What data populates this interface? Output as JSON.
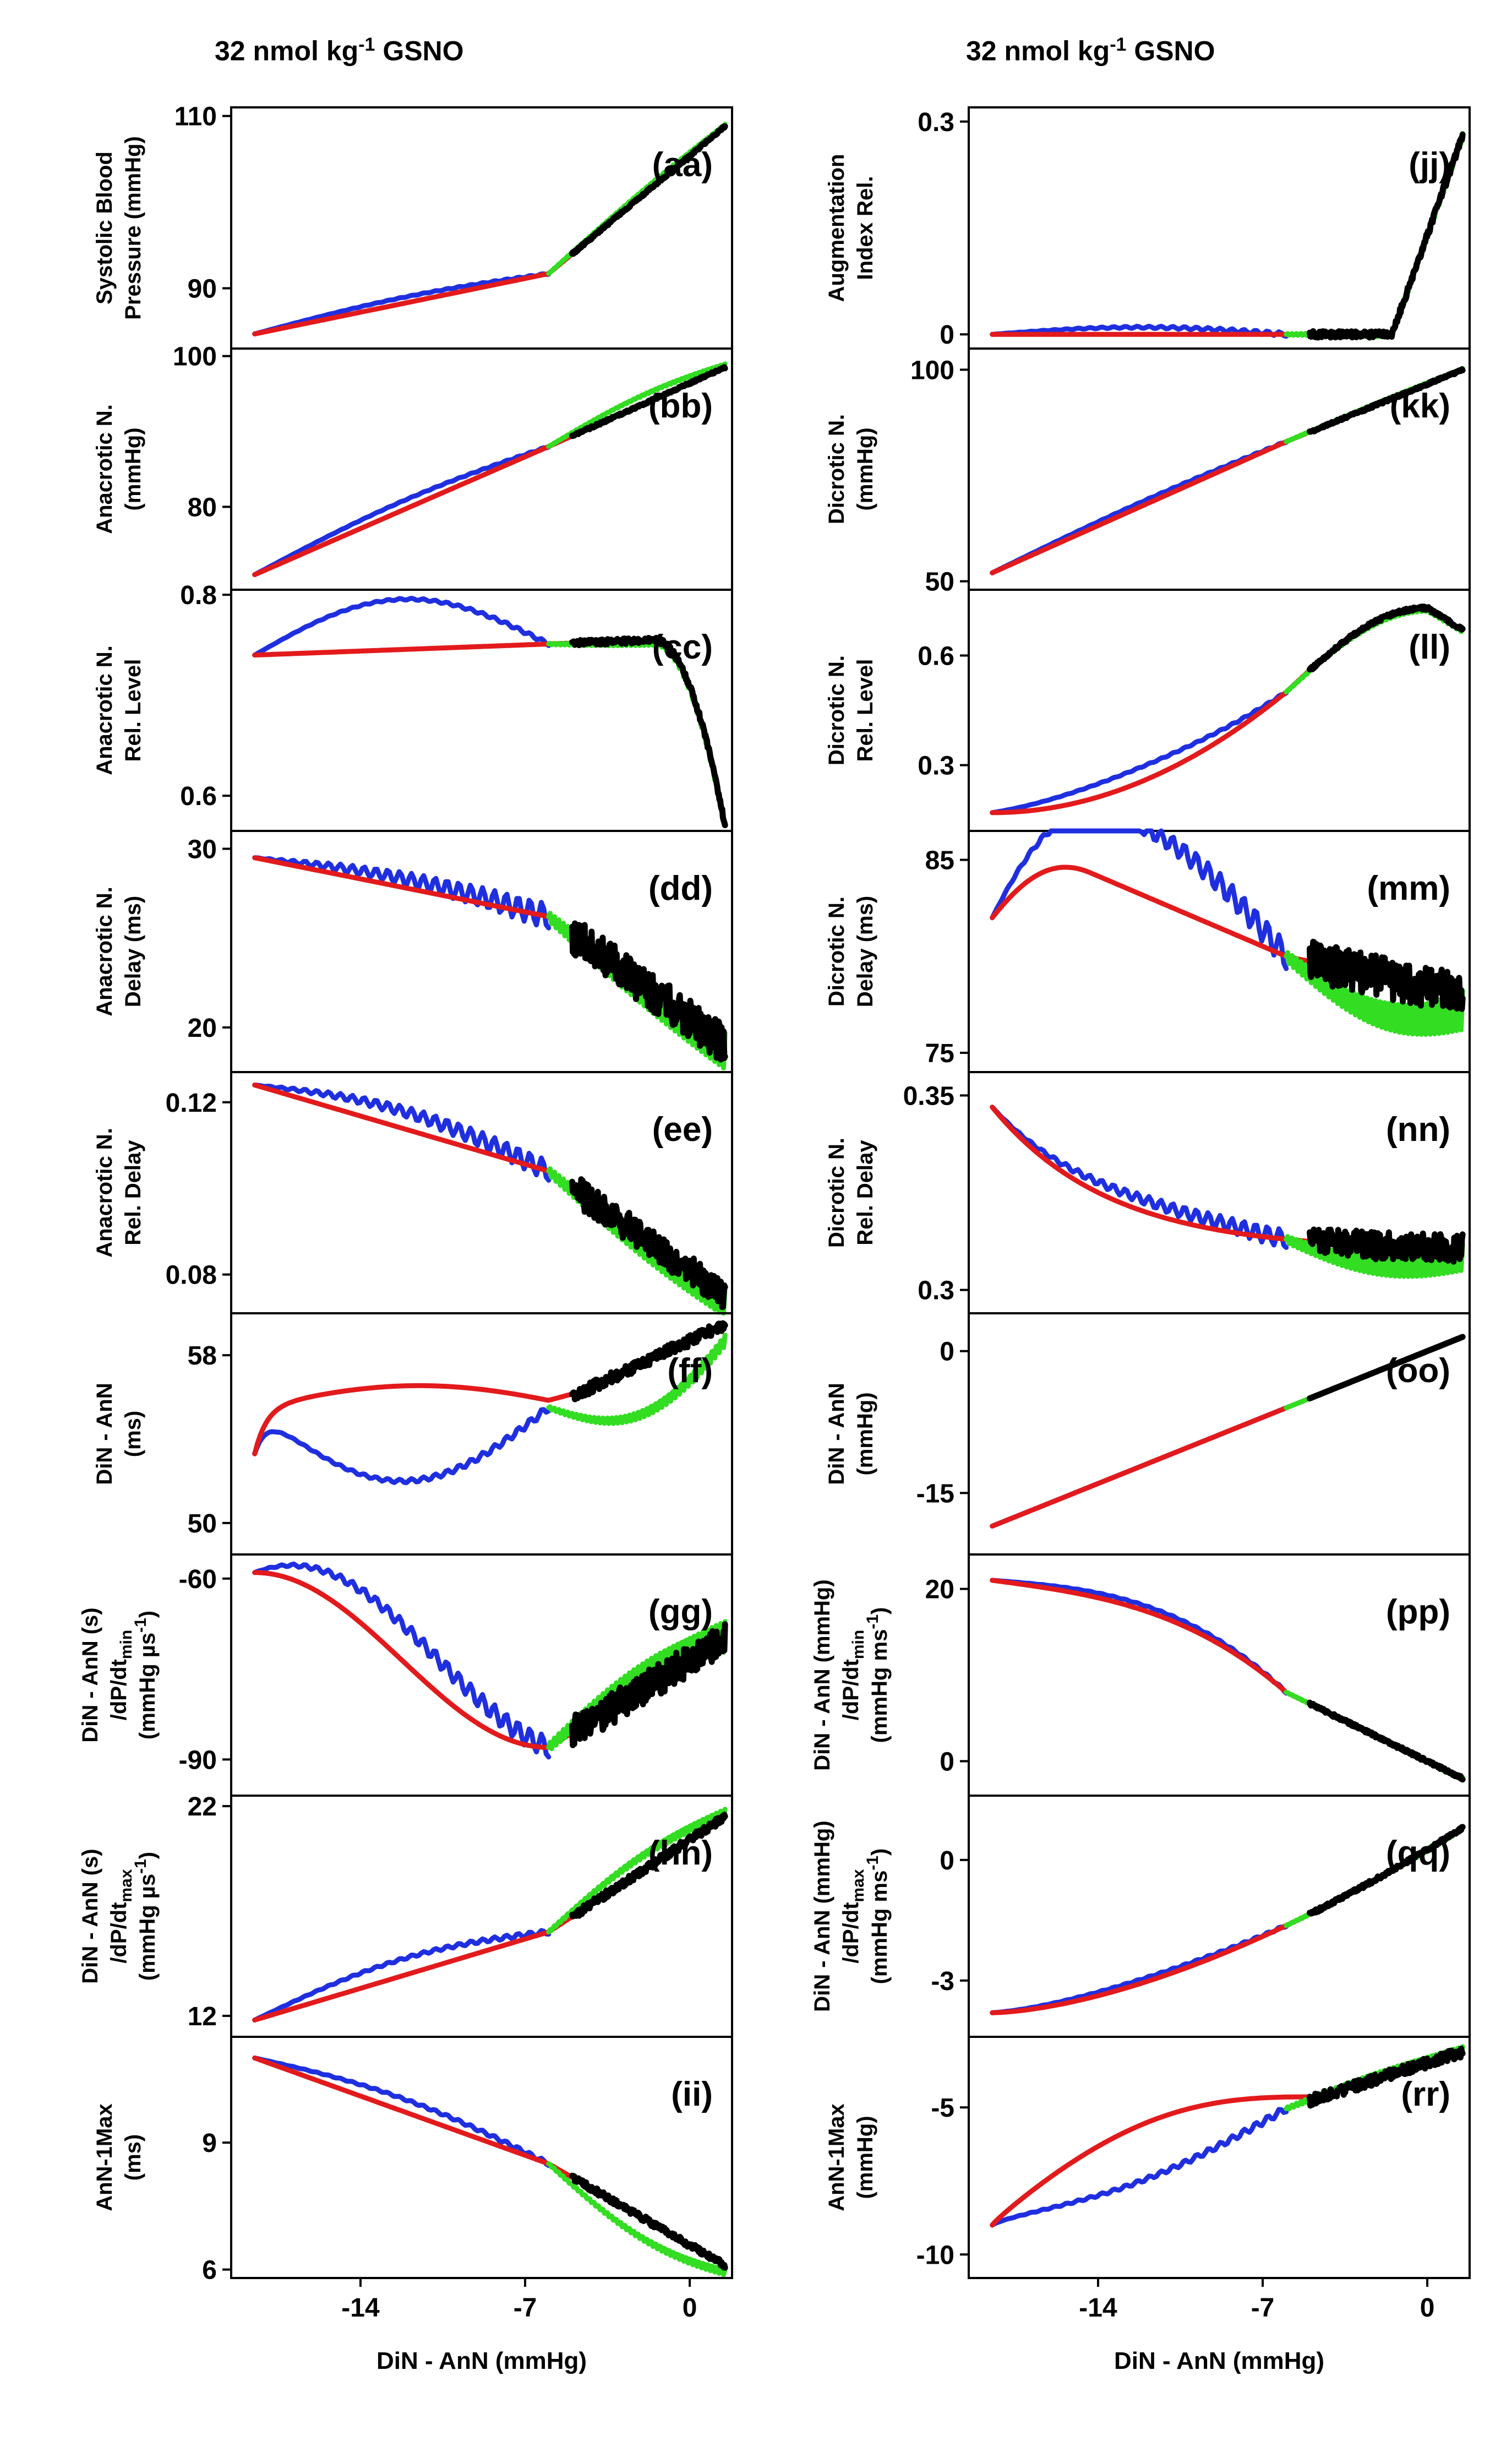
{
  "headers": {
    "left": {
      "text": "32 nmol kg",
      "sup": "-1",
      "suffix": " GSNO"
    },
    "right": {
      "text": "32 nmol kg",
      "sup": "-1",
      "suffix": " GSNO"
    }
  },
  "colors": {
    "blue": "#1f2fe0",
    "red": "#e31a1c",
    "green": "#33dd22",
    "black": "#000000"
  },
  "chart_data": {
    "type": "line",
    "title": "32 nmol kg-1 GSNO",
    "xlabel": "DiN - AnN (mmHg)",
    "xlim": [
      -19.5,
      1.8
    ],
    "xticks": [
      -14,
      -7,
      0
    ],
    "x_ranges": {
      "blue": [
        -18.5,
        -6
      ],
      "red": [
        -18.5,
        -4.5
      ],
      "green": [
        -6,
        1.5
      ],
      "black": [
        -5,
        1.5
      ]
    },
    "panels": [
      {
        "label": "(aa)",
        "ylabel": [
          "Systolic Blood",
          "Pressure (mmHg)"
        ],
        "ylim": [
          83,
          111
        ],
        "yticks": [
          90,
          110
        ],
        "shape": "linear",
        "ends": [
          84.7,
          91.7,
          108.8
        ],
        "noise": 0.15,
        "loop": 0.7,
        "green_offset": 0.8
      },
      {
        "label": "(bb)",
        "ylabel": [
          "Anacrotic N.",
          "(mmHg)"
        ],
        "ylim": [
          69,
          101
        ],
        "yticks": [
          80,
          100
        ],
        "shape": "linear",
        "ends": [
          71,
          88,
          98.5
        ],
        "noise": 0.15,
        "loop": 1.2,
        "green_offset": 2.0
      },
      {
        "label": "(cc)",
        "ylabel": [
          "Anacrotic N.",
          "Rel. Level"
        ],
        "ylim": [
          0.565,
          0.805
        ],
        "yticks": [
          0.6,
          0.8
        ],
        "shape": "dropend",
        "ends": [
          0.74,
          0.755,
          0.57
        ],
        "noise": 0.003,
        "loop": 0.05,
        "green_offset": -0.005
      },
      {
        "label": "(dd)",
        "ylabel": [
          "Anacrotic N.",
          "Delay (ms)"
        ],
        "ylim": [
          17.5,
          31
        ],
        "yticks": [
          20,
          30
        ],
        "shape": "linear",
        "ends": [
          29.5,
          26.2,
          19
        ],
        "noise": 1.2,
        "loop": 0.5,
        "green_offset": -0.5
      },
      {
        "label": "(ee)",
        "ylabel": [
          "Anacrotic N.",
          "Rel. Delay"
        ],
        "ylim": [
          0.071,
          0.127
        ],
        "yticks": [
          0.08,
          0.12
        ],
        "shape": "linear",
        "ends": [
          0.124,
          0.104,
          0.075
        ],
        "noise": 0.004,
        "loop": 0.004,
        "green_offset": -0.003
      },
      {
        "label": "(ff)",
        "ylabel": [
          "DiN - AnN",
          "(ms)"
        ],
        "ylim": [
          48.5,
          60
        ],
        "yticks": [
          50,
          58
        ],
        "shape": "loop",
        "ends": [
          53.3,
          55.5,
          59.5
        ],
        "noise": 0.3,
        "loop": 3.5,
        "green_offset": -4.0
      },
      {
        "label": "(gg)",
        "ylabel": [
          "DiN - AnN (s)",
          "/dP/dt_min",
          "(mmHg µs^-1)"
        ],
        "ylim": [
          -96,
          -56
        ],
        "yticks": [
          -60,
          -90
        ],
        "shape": "sag",
        "ends": [
          -59,
          -88,
          -70
        ],
        "noise": 3.0,
        "loop": 6.0,
        "green_offset": 5.0
      },
      {
        "label": "(hh)",
        "ylabel": [
          "DiN - AnN (s)",
          "/dP/dt_max",
          "(mmHg µs^-1)"
        ],
        "ylim": [
          11,
          22.5
        ],
        "yticks": [
          12,
          22
        ],
        "shape": "linear",
        "ends": [
          11.8,
          16,
          21.5
        ],
        "noise": 0.2,
        "loop": 0.8,
        "green_offset": 1.2
      },
      {
        "label": "(ii)",
        "ylabel": [
          "AnN-1Max",
          "(ms)"
        ],
        "ylim": [
          5.8,
          11.5
        ],
        "yticks": [
          6,
          9
        ],
        "shape": "linear",
        "ends": [
          11,
          8.5,
          6.1
        ],
        "noise": 0.08,
        "loop": 0.3,
        "green_offset": -0.8
      },
      {
        "label": "(jj)",
        "ylabel": [
          "Augmentation",
          "Index Rel."
        ],
        "ylim": [
          -0.02,
          0.32
        ],
        "yticks": [
          0.0,
          0.3
        ],
        "shape": "steep",
        "ends": [
          0.0,
          0.0,
          0.28
        ],
        "noise": 0.005,
        "loop": 0.01,
        "green_offset": 0.0
      },
      {
        "label": "(kk)",
        "ylabel": [
          "Dicrotic N.",
          "(mmHg)"
        ],
        "ylim": [
          48,
          105
        ],
        "yticks": [
          50,
          100
        ],
        "shape": "linear",
        "ends": [
          52,
          83,
          100
        ],
        "noise": 0.3,
        "loop": 1.0,
        "green_offset": 0.5
      },
      {
        "label": "(ll)",
        "ylabel": [
          "Dicrotic N.",
          "Rel. Level"
        ],
        "ylim": [
          0.12,
          0.78
        ],
        "yticks": [
          0.3,
          0.6
        ],
        "shape": "rise_peak",
        "ends": [
          0.17,
          0.5,
          0.67
        ],
        "noise": 0.005,
        "loop": 0.04,
        "green_offset": -0.01
      },
      {
        "label": "(mm)",
        "ylabel": [
          "Dicrotic N.",
          "Delay (ms)"
        ],
        "ylim": [
          74,
          86.5
        ],
        "yticks": [
          75,
          85
        ],
        "shape": "hump",
        "ends": [
          82,
          80,
          78
        ],
        "noise": 1.2,
        "loop": 3.5,
        "green_offset": -3.0
      },
      {
        "label": "(nn)",
        "ylabel": [
          "Dicrotic N.",
          "Rel. Delay"
        ],
        "ylim": [
          0.294,
          0.356
        ],
        "yticks": [
          0.3,
          0.35
        ],
        "shape": "decay",
        "ends": [
          0.347,
          0.318,
          0.31
        ],
        "noise": 0.004,
        "loop": 0.003,
        "green_offset": -0.008
      },
      {
        "label": "(oo)",
        "ylabel": [
          "DiN - AnN",
          "(mmHg)"
        ],
        "ylim": [
          -21.5,
          4
        ],
        "yticks": [
          0,
          -15
        ],
        "shape": "identity",
        "ends": [
          -19.5,
          -6,
          1.5
        ],
        "noise": 0.0,
        "loop": 0.0,
        "green_offset": 0.0
      },
      {
        "label": "(pp)",
        "ylabel": [
          "DiN - AnN (mmHg)",
          "/dP/dt_min",
          "(mmHg ms^-1)"
        ],
        "ylim": [
          -4,
          24
        ],
        "yticks": [
          20,
          0
        ],
        "shape": "descend",
        "ends": [
          21,
          8,
          -2
        ],
        "noise": 0.2,
        "loop": 0.6,
        "green_offset": 0.0
      },
      {
        "label": "(qq)",
        "ylabel": [
          "DiN - AnN (mmHg)",
          "/dP/dt_max",
          "(mmHg ms^-1)"
        ],
        "ylim": [
          -4.4,
          1.6
        ],
        "yticks": [
          0,
          -3
        ],
        "shape": "convex",
        "ends": [
          -3.8,
          -2.0,
          0.8
        ],
        "noise": 0.05,
        "loop": 0.1,
        "green_offset": 0.0
      },
      {
        "label": "(rr)",
        "ylabel": [
          "AnN-1Max",
          "(mmHg)"
        ],
        "ylim": [
          -10.8,
          -2.6
        ],
        "yticks": [
          -5,
          -10
        ],
        "shape": "loop_up",
        "ends": [
          -9,
          -5,
          -3.1
        ],
        "noise": 0.2,
        "loop": 1.2,
        "green_offset": 0.2
      }
    ]
  }
}
